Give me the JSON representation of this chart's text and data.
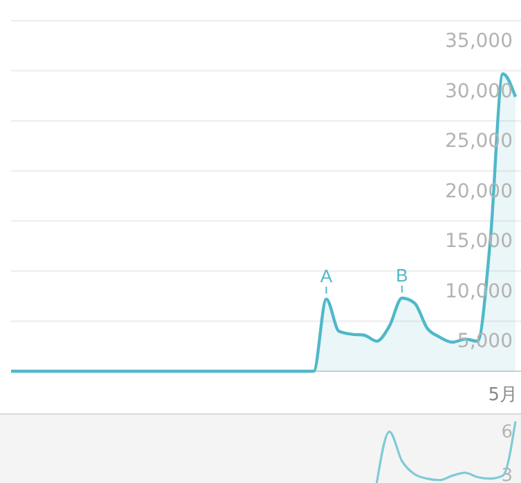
{
  "chart_data": [
    {
      "type": "area",
      "categories": [
        null,
        null,
        null,
        null,
        null,
        null,
        null,
        null,
        null,
        null,
        null,
        null,
        null,
        null,
        null,
        null,
        null,
        null,
        null,
        null,
        null,
        null,
        null,
        null,
        null,
        null,
        null,
        null,
        null,
        null,
        null,
        null,
        null,
        null,
        null,
        null,
        null,
        null,
        null,
        "5月",
        null
      ],
      "series": [
        {
          "color": "#4fb8c9",
          "values": [
            0,
            0,
            0,
            0,
            0,
            0,
            0,
            0,
            0,
            0,
            0,
            0,
            0,
            0,
            0,
            0,
            0,
            0,
            0,
            0,
            0,
            0,
            0,
            0,
            0,
            7200,
            4000,
            3700,
            3600,
            3000,
            4500,
            7300,
            6800,
            4300,
            3400,
            2900,
            3200,
            3000,
            13000,
            29700,
            27400
          ]
        }
      ],
      "ylim": [
        0,
        35000
      ],
      "yticks": [
        {
          "value": 0,
          "label": null
        },
        {
          "value": 5000,
          "label": "5,000"
        },
        {
          "value": 10000,
          "label": "10,000"
        },
        {
          "value": 15000,
          "label": "15,000"
        },
        {
          "value": 20000,
          "label": "20,000"
        },
        {
          "value": 25000,
          "label": "25,000"
        },
        {
          "value": 30000,
          "label": "30,000"
        },
        {
          "value": 35000,
          "label": "35,000"
        }
      ],
      "grid": "y",
      "annotations": [
        {
          "text": "A",
          "y": 7200
        },
        {
          "text": "B",
          "y": 7300
        }
      ]
    },
    {
      "type": "line",
      "categories": [
        null,
        null,
        null,
        null,
        null,
        null,
        null,
        null,
        null,
        null,
        null,
        null,
        null,
        null,
        null,
        null,
        null,
        null,
        null,
        null,
        null,
        null,
        null,
        null,
        null,
        null,
        null,
        null,
        null,
        null,
        null,
        null,
        null,
        null,
        null,
        null,
        null,
        null,
        null,
        null,
        null
      ],
      "series": [
        {
          "color": "#7fcad6",
          "values": [
            null,
            null,
            null,
            null,
            null,
            null,
            null,
            null,
            null,
            null,
            null,
            null,
            null,
            null,
            null,
            null,
            null,
            null,
            null,
            null,
            null,
            null,
            null,
            null,
            null,
            null,
            null,
            null,
            null,
            2.5,
            6.0,
            4.0,
            3.1,
            2.8,
            2.7,
            3.0,
            3.2,
            2.9,
            2.8,
            3.0,
            6.7
          ]
        }
      ],
      "ylim": [
        2.5,
        7.2
      ],
      "yticks": [
        3,
        6
      ],
      "tick_labels": "y"
    }
  ]
}
